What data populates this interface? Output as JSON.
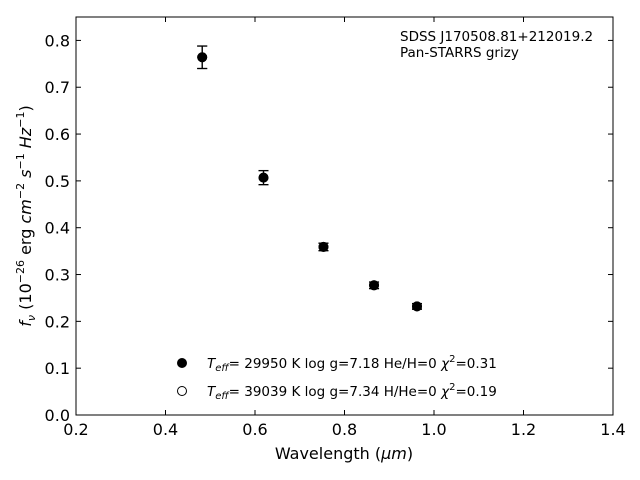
{
  "chart_data": {
    "type": "scatter",
    "title": "",
    "xlabel_main": "Wavelength (",
    "xlabel_unit": "μm",
    "xlabel_close": ")",
    "ylabel": "f_ν (10^-26 erg cm^-2 s^-1 Hz^-1)",
    "xlim": [
      0.2,
      1.4
    ],
    "ylim": [
      0.0,
      0.85
    ],
    "xticks": [
      0.2,
      0.4,
      0.6,
      0.8,
      1.0,
      1.2,
      1.4
    ],
    "xtick_labels": [
      "0.2",
      "0.4",
      "0.6",
      "0.8",
      "1.0",
      "1.2",
      "1.4"
    ],
    "yticks": [
      0.0,
      0.1,
      0.2,
      0.3,
      0.4,
      0.5,
      0.6,
      0.7,
      0.8
    ],
    "ytick_labels": [
      "0.0",
      "0.1",
      "0.2",
      "0.3",
      "0.4",
      "0.5",
      "0.6",
      "0.7",
      "0.8"
    ],
    "grid": false,
    "annotation_line1": "SDSS J170508.81+212019.2",
    "annotation_line2": "Pan-STARRS grizy",
    "series": [
      {
        "name": "T_eff= 29950 K  log g=7.18  He/H=0  χ²=0.31",
        "marker": "filled-circle",
        "x": [
          0.482,
          0.619,
          0.753,
          0.866,
          0.962
        ],
        "y": [
          0.764,
          0.507,
          0.359,
          0.277,
          0.232
        ],
        "yerr": [
          0.024,
          0.015,
          0.008,
          0.007,
          0.006
        ]
      },
      {
        "name": "T_eff= 39039 K  log g=7.34  H/He=0  χ²=0.19",
        "marker": "open-circle",
        "x": [
          0.482,
          0.619,
          0.753,
          0.866,
          0.962
        ],
        "y": [
          0.764,
          0.507,
          0.359,
          0.277,
          0.232
        ],
        "yerr": [
          0.024,
          0.015,
          0.008,
          0.007,
          0.006
        ]
      }
    ]
  },
  "legend": {
    "entry1": {
      "t": "T",
      "sub": "eff",
      "rest": "= 29950 K  log g=7.18  He/H=0  ",
      "chi": "χ",
      "sup": "2",
      "val": "=0.31"
    },
    "entry2": {
      "t": "T",
      "sub": "eff",
      "rest": "= 39039 K  log g=7.34  H/He=0  ",
      "chi": "χ",
      "sup": "2",
      "val": "=0.19"
    }
  },
  "ylabel_parts": {
    "f": "f",
    "nu": "ν",
    "open": " (10",
    "exp26": "−26",
    "erg": " erg ",
    "cm": "cm",
    "exp2": "−2",
    "s": " s",
    "exp1": "−1",
    "hz": " Hz",
    "exp1b": "−1",
    "close": ")"
  },
  "colors": {
    "marker": "#000000",
    "axis": "#000000",
    "background": "#ffffff"
  }
}
